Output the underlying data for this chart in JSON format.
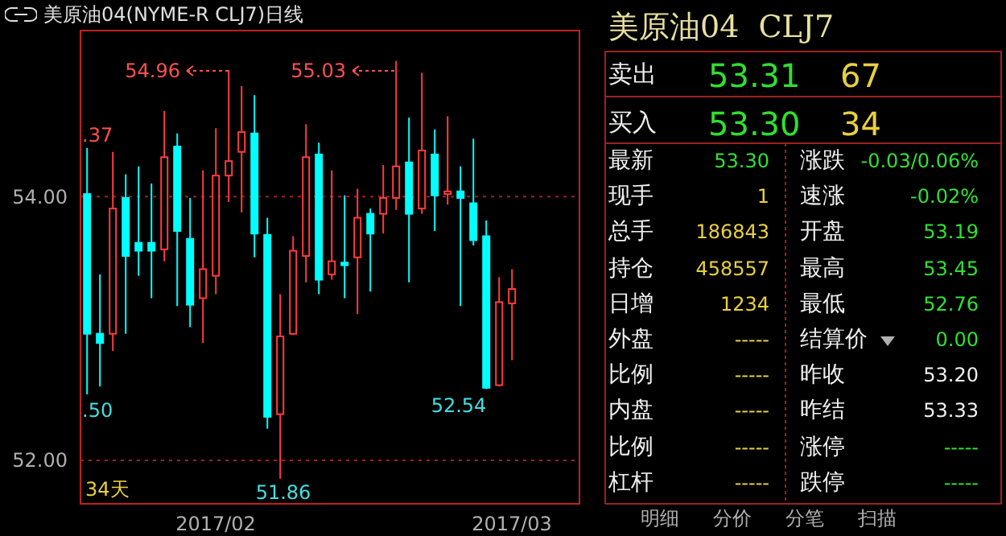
{
  "chart_data": [
    {
      "type": "candlestick",
      "title": "美原油04(NYME-R CLJ7)日线",
      "categories": [
        null,
        null,
        null,
        null,
        null,
        null,
        null,
        null,
        null,
        null,
        "2017/02",
        null,
        null,
        null,
        null,
        null,
        null,
        null,
        null,
        null,
        null,
        null,
        null,
        null,
        null,
        null,
        null,
        null,
        null,
        null,
        null,
        null,
        null,
        "2017/03"
      ],
      "ohlc": [
        [
          54.02,
          54.37,
          52.5,
          52.96
        ],
        [
          52.96,
          53.41,
          52.56,
          52.89
        ],
        [
          52.96,
          54.34,
          52.83,
          53.91
        ],
        [
          53.99,
          54.17,
          52.96,
          53.55
        ],
        [
          53.65,
          54.23,
          53.4,
          53.59
        ],
        [
          53.65,
          54.1,
          53.23,
          53.59
        ],
        [
          53.6,
          54.65,
          53.51,
          54.3
        ],
        [
          54.38,
          54.48,
          53.17,
          53.74
        ],
        [
          53.68,
          53.99,
          53.01,
          53.18
        ],
        [
          53.23,
          54.2,
          52.89,
          53.45
        ],
        [
          53.4,
          54.52,
          53.26,
          54.16
        ],
        [
          54.16,
          54.96,
          53.96,
          54.27
        ],
        [
          54.34,
          54.84,
          53.88,
          54.49
        ],
        [
          54.48,
          54.77,
          53.54,
          53.72
        ],
        [
          53.71,
          53.84,
          52.24,
          52.33
        ],
        [
          52.35,
          53.26,
          51.86,
          52.94
        ],
        [
          52.96,
          53.7,
          52.95,
          53.59
        ],
        [
          53.55,
          54.55,
          53.35,
          54.3
        ],
        [
          54.32,
          54.41,
          53.26,
          53.37
        ],
        [
          53.41,
          54.2,
          53.37,
          53.51
        ],
        [
          53.5,
          54.01,
          53.23,
          53.48
        ],
        [
          53.54,
          54.06,
          53.11,
          53.84
        ],
        [
          53.87,
          53.91,
          53.28,
          53.72
        ],
        [
          53.87,
          54.24,
          53.72,
          53.99
        ],
        [
          53.99,
          55.03,
          53.9,
          54.23
        ],
        [
          54.26,
          54.6,
          53.35,
          53.87
        ],
        [
          53.91,
          54.94,
          53.87,
          54.35
        ],
        [
          54.32,
          54.51,
          53.74,
          54.01
        ],
        [
          54.02,
          54.61,
          53.94,
          54.04
        ],
        [
          54.04,
          54.23,
          53.17,
          53.99
        ],
        [
          53.95,
          54.44,
          53.63,
          53.67
        ],
        [
          53.7,
          53.82,
          52.54,
          52.55
        ],
        [
          52.57,
          53.39,
          52.56,
          53.2
        ],
        [
          53.19,
          53.45,
          52.76,
          53.3
        ]
      ],
      "colors": [
        "#00ffff",
        "#00ffff",
        "#ff3c3c",
        "#00ffff",
        "#00ffff",
        "#00ffff",
        "#ff3c3c",
        "#00ffff",
        "#00ffff",
        "#ff3c3c",
        "#ff3c3c",
        "#ff3c3c",
        "#ff3c3c",
        "#00ffff",
        "#00ffff",
        "#ff3c3c",
        "#ff3c3c",
        "#ff3c3c",
        "#00ffff",
        "#ff3c3c",
        "#00ffff",
        "#ff3c3c",
        "#00ffff",
        "#ff3c3c",
        "#ff3c3c",
        "#00ffff",
        "#ff3c3c",
        "#00ffff",
        "#ff3c3c",
        "#00ffff",
        "#00ffff",
        "#00ffff",
        "#ff3c3c",
        "#ff3c3c"
      ],
      "ylim": [
        51.67,
        55.26
      ],
      "yticks": [
        {
          "value": 52,
          "label": "52.00"
        },
        {
          "value": 54,
          "label": "54.00"
        }
      ],
      "grid": "y",
      "annotations": [
        ".37",
        ".50",
        "54.96",
        "55.03",
        "51.86",
        "52.54",
        "34天"
      ]
    },
    {
      "type": "other",
      "title": "美原油04  CLJ7",
      "annotations": [
        "卖出",
        "53.31",
        "67",
        "买入",
        "53.30",
        "34",
        "最新",
        "53.30",
        "涨跌",
        "-0.03/0.06%",
        "现手",
        "1",
        "速涨",
        "-0.02%",
        "总手",
        "186843",
        "开盘",
        "53.19",
        "持仓",
        "458557",
        "最高",
        "53.45",
        "日增",
        "1234",
        "最低",
        "52.76",
        "外盘",
        "-----",
        "结算价",
        "0.00",
        "比例",
        "-----",
        "昨收",
        "53.20",
        "内盘",
        "-----",
        "昨结",
        "53.33",
        "比例",
        "-----",
        "涨停",
        "-----",
        "杠杆",
        "-----",
        "跌停",
        "-----",
        "明细",
        "分价",
        "分笔",
        "扫描"
      ]
    }
  ]
}
